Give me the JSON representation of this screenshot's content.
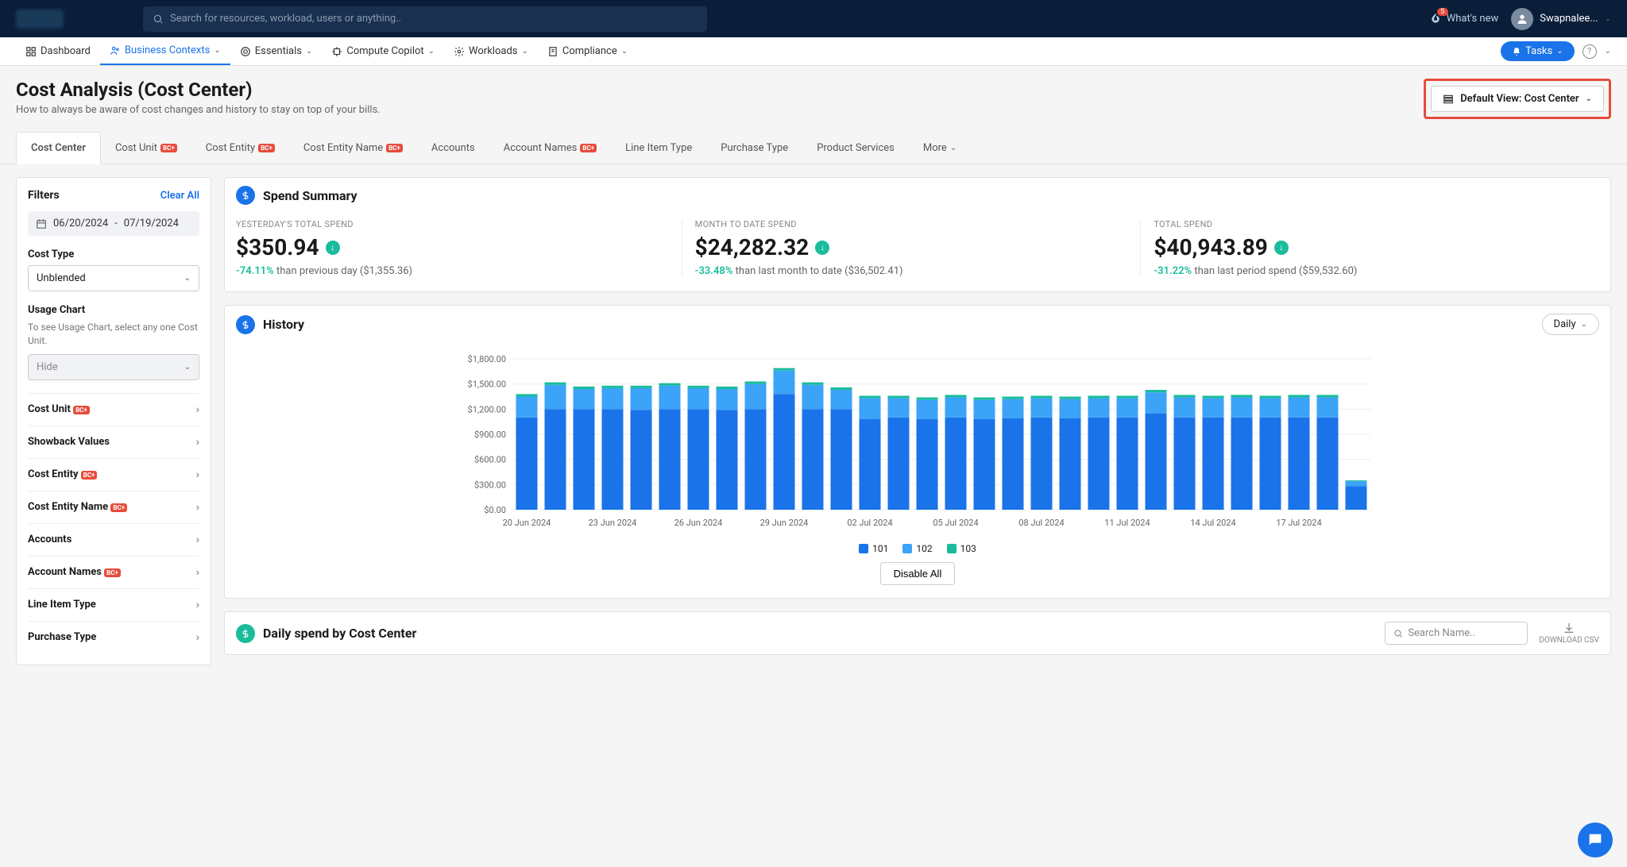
{
  "header": {
    "search_placeholder": "Search for resources, workload, users or anything..",
    "whats_new_label": "What's new",
    "whats_new_count": "5",
    "user_name": "Swapnalee..."
  },
  "nav": {
    "dashboard": "Dashboard",
    "business": "Business Contexts",
    "essentials": "Essentials",
    "compute": "Compute Copilot",
    "workloads": "Workloads",
    "compliance": "Compliance",
    "tasks": "Tasks"
  },
  "page": {
    "title": "Cost Analysis (Cost Center)",
    "subtitle": "How to always be aware of cost changes and history to stay on top of your bills.",
    "default_view": "Default View: Cost Center"
  },
  "tabs": {
    "items": [
      {
        "label": "Cost Center",
        "badge": false
      },
      {
        "label": "Cost Unit",
        "badge": true
      },
      {
        "label": "Cost Entity",
        "badge": true
      },
      {
        "label": "Cost Entity Name",
        "badge": true
      },
      {
        "label": "Accounts",
        "badge": false
      },
      {
        "label": "Account Names",
        "badge": true
      },
      {
        "label": "Line Item Type",
        "badge": false
      },
      {
        "label": "Purchase Type",
        "badge": false
      },
      {
        "label": "Product Services",
        "badge": false
      },
      {
        "label": "More",
        "badge": false
      }
    ]
  },
  "filters": {
    "title": "Filters",
    "clear": "Clear All",
    "date_from": "06/20/2024",
    "date_to": "07/19/2024",
    "cost_type_label": "Cost Type",
    "cost_type_value": "Unblended",
    "usage_label": "Usage Chart",
    "usage_help": "To see Usage Chart, select any one Cost Unit.",
    "usage_value": "Hide",
    "items": [
      {
        "label": "Cost Unit",
        "badge": true
      },
      {
        "label": "Showback Values",
        "badge": false
      },
      {
        "label": "Cost Entity",
        "badge": true
      },
      {
        "label": "Cost Entity Name",
        "badge": true
      },
      {
        "label": "Accounts",
        "badge": false
      },
      {
        "label": "Account Names",
        "badge": true
      },
      {
        "label": "Line Item Type",
        "badge": false
      },
      {
        "label": "Purchase Type",
        "badge": false
      }
    ]
  },
  "summary": {
    "title": "Spend Summary",
    "cols": [
      {
        "label": "YESTERDAY'S TOTAL SPEND",
        "value": "$350.94",
        "pct": "-74.11%",
        "rest": " than previous day ($1,355.36)"
      },
      {
        "label": "MONTH TO DATE SPEND",
        "value": "$24,282.32",
        "pct": "-33.48%",
        "rest": " than last month to date ($36,502.41)"
      },
      {
        "label": "TOTAL SPEND",
        "value": "$40,943.89",
        "pct": "-31.22%",
        "rest": " than last period spend ($59,532.60)"
      }
    ]
  },
  "history": {
    "title": "History",
    "frequency": "Daily",
    "disable_all": "Disable All",
    "ymax": 1800,
    "ytick": 300,
    "ylabels": [
      "$0.00",
      "$300.00",
      "$600.00",
      "$900.00",
      "$1,200.00",
      "$1,500.00",
      "$1,800.00"
    ],
    "xlabels": [
      "20 Jun 2024",
      "23 Jun 2024",
      "26 Jun 2024",
      "29 Jun 2024",
      "02 Jul 2024",
      "05 Jul 2024",
      "08 Jul 2024",
      "11 Jul 2024",
      "14 Jul 2024",
      "17 Jul 2024"
    ],
    "series": [
      {
        "name": "101",
        "color": "#1a73e8"
      },
      {
        "name": "102",
        "color": "#3ba3f8"
      },
      {
        "name": "103",
        "color": "#1abc9c"
      }
    ],
    "bars": [
      {
        "s101": 1100,
        "s102": 250,
        "s103": 30
      },
      {
        "s101": 1200,
        "s102": 290,
        "s103": 30
      },
      {
        "s101": 1200,
        "s102": 240,
        "s103": 30
      },
      {
        "s101": 1200,
        "s102": 250,
        "s103": 30
      },
      {
        "s101": 1190,
        "s102": 260,
        "s103": 30
      },
      {
        "s101": 1200,
        "s102": 280,
        "s103": 30
      },
      {
        "s101": 1200,
        "s102": 250,
        "s103": 30
      },
      {
        "s101": 1190,
        "s102": 250,
        "s103": 30
      },
      {
        "s101": 1200,
        "s102": 300,
        "s103": 30
      },
      {
        "s101": 1380,
        "s102": 280,
        "s103": 30
      },
      {
        "s101": 1200,
        "s102": 290,
        "s103": 30
      },
      {
        "s101": 1200,
        "s102": 230,
        "s103": 30
      },
      {
        "s101": 1080,
        "s102": 250,
        "s103": 30
      },
      {
        "s101": 1100,
        "s102": 230,
        "s103": 30
      },
      {
        "s101": 1080,
        "s102": 230,
        "s103": 30
      },
      {
        "s101": 1100,
        "s102": 240,
        "s103": 30
      },
      {
        "s101": 1080,
        "s102": 230,
        "s103": 30
      },
      {
        "s101": 1090,
        "s102": 230,
        "s103": 30
      },
      {
        "s101": 1100,
        "s102": 230,
        "s103": 30
      },
      {
        "s101": 1090,
        "s102": 230,
        "s103": 30
      },
      {
        "s101": 1100,
        "s102": 230,
        "s103": 30
      },
      {
        "s101": 1100,
        "s102": 230,
        "s103": 30
      },
      {
        "s101": 1150,
        "s102": 250,
        "s103": 30
      },
      {
        "s101": 1100,
        "s102": 240,
        "s103": 30
      },
      {
        "s101": 1100,
        "s102": 230,
        "s103": 30
      },
      {
        "s101": 1100,
        "s102": 240,
        "s103": 30
      },
      {
        "s101": 1100,
        "s102": 230,
        "s103": 30
      },
      {
        "s101": 1100,
        "s102": 240,
        "s103": 30
      },
      {
        "s101": 1100,
        "s102": 240,
        "s103": 30
      },
      {
        "s101": 280,
        "s102": 60,
        "s103": 10
      }
    ]
  },
  "daily": {
    "title": "Daily spend by Cost Center",
    "search_placeholder": "Search Name..",
    "download": "DOWNLOAD CSV"
  }
}
